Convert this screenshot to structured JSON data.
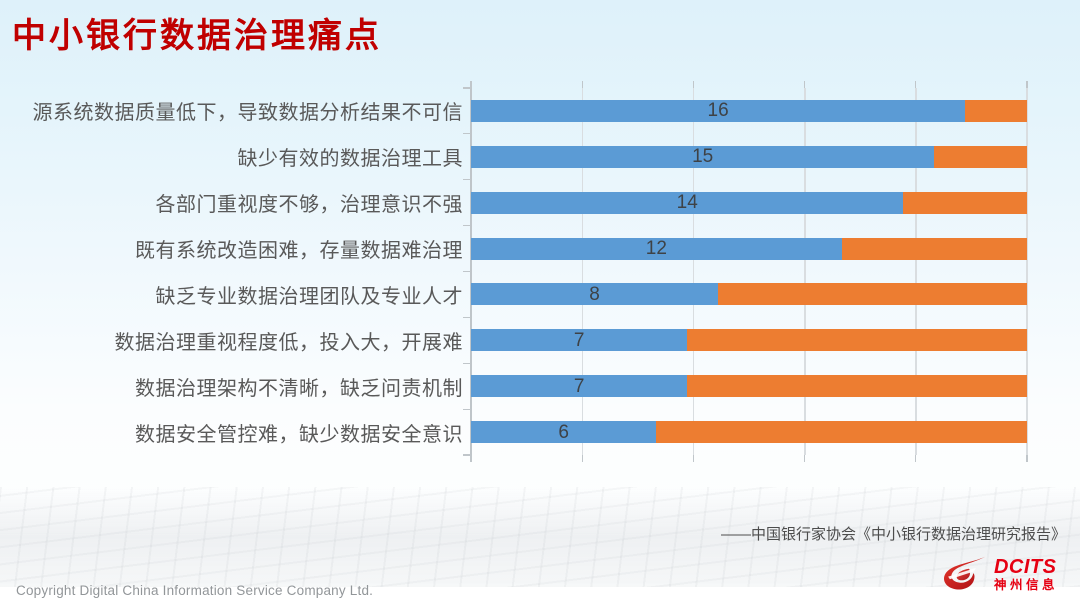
{
  "slide": {
    "title": "中小银行数据治理痛点",
    "source": "——中国银行家协会《中小银行数据治理研究报告》",
    "copyright": "Copyright  Digital China Information Service Company Ltd.",
    "logo": {
      "brand": "DCITS",
      "brand_cn": "神州信息"
    }
  },
  "colors": {
    "title_red": "#c00000",
    "bar_blue": "#5b9bd5",
    "bar_orange": "#ed7d31",
    "gridline": "#d9dde0",
    "category_label": "#595959",
    "value_label": "#3e4246",
    "logo_red": "#e60012"
  },
  "chart_data": {
    "type": "bar",
    "orientation": "horizontal-stacked",
    "title": "",
    "xlabel": "",
    "ylabel": "",
    "categories": [
      "源系统数据质量低下，导致数据分析结果不可信",
      "缺少有效的数据治理工具",
      "各部门重视度不够，治理意识不强",
      "既有系统改造困难，存量数据难治理",
      "缺乏专业数据治理团队及专业人才",
      "数据治理重视程度低，投入大，开展难",
      "数据治理架构不清晰，缺乏问责机制",
      "数据安全管控难，缺少数据安全意识"
    ],
    "series": [
      {
        "name": "blue-segment",
        "color": "#5b9bd5",
        "values": [
          16,
          15,
          14,
          12,
          8,
          7,
          7,
          6
        ],
        "data_labels_shown": true
      },
      {
        "name": "orange-segment",
        "color": "#ed7d31",
        "values": [
          2,
          3,
          4,
          6,
          10,
          11,
          11,
          12
        ],
        "data_labels_shown": false
      }
    ],
    "stack_total": 18,
    "xlim": [
      0,
      18
    ],
    "x_gridline_intervals": 5,
    "grid": "vertical-on",
    "legend": "none"
  }
}
